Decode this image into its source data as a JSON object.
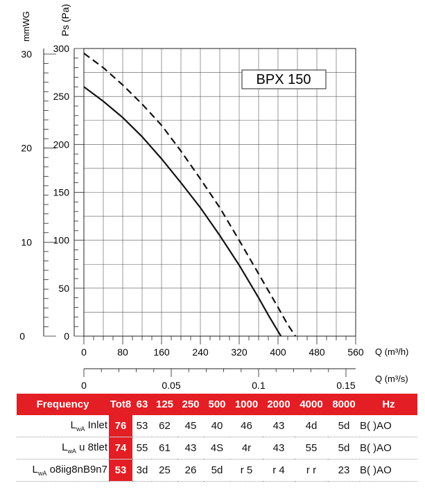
{
  "chart_data": {
    "type": "line",
    "title": "BPX 150",
    "xlabel": "Q (m³/h)",
    "ylabel": "Ps (Pa)",
    "y2label": "mmWG",
    "x2label": "Q (m³/s)",
    "xlim": [
      0,
      560
    ],
    "ylim": [
      0,
      300
    ],
    "x_ticks": [
      0,
      80,
      160,
      240,
      320,
      400,
      480,
      560
    ],
    "y_ticks": [
      0,
      50,
      100,
      150,
      200,
      250,
      300
    ],
    "y2_ticks": [
      0,
      10,
      20,
      30
    ],
    "x2_ticks": [
      "0",
      "0.05",
      "0.1",
      "0.15"
    ],
    "grid": true,
    "series": [
      {
        "style": "solid",
        "x": [
          0,
          40,
          80,
          120,
          160,
          200,
          240,
          280,
          320,
          360,
          380,
          400,
          406
        ],
        "y": [
          260,
          245,
          228,
          208,
          185,
          160,
          134,
          105,
          74,
          40,
          22,
          5,
          0
        ]
      },
      {
        "style": "dashed",
        "x": [
          0,
          40,
          80,
          120,
          160,
          200,
          240,
          280,
          320,
          360,
          400,
          420,
          436
        ],
        "y": [
          295,
          280,
          262,
          242,
          220,
          193,
          164,
          134,
          100,
          65,
          30,
          12,
          0
        ]
      }
    ]
  },
  "table": {
    "frequency_label": "Frequency",
    "columns": [
      "Tot8",
      "63",
      "125",
      "250",
      "500",
      "1000",
      "2000",
      "4000",
      "8000",
      "Hz"
    ],
    "rows": [
      {
        "lwa": "L",
        "lwa_sub": "wA",
        "label": "Inlet",
        "tot": "76",
        "values": [
          "53",
          "62",
          "45",
          "40",
          "46",
          "43",
          "4d",
          "5d"
        ],
        "unit": "B( )AO"
      },
      {
        "lwa": "L",
        "lwa_sub": "wA",
        "label": "u 8tlet",
        "tot": "74",
        "values": [
          "55",
          "61",
          "43",
          "4S",
          "4r",
          "43",
          "55",
          "5d"
        ],
        "unit": "B( )AO"
      },
      {
        "lwa": "L",
        "lwa_sub": "wA",
        "label": "o8iig8nB9n7",
        "tot": "53",
        "values": [
          "3d",
          "25",
          "26",
          "5d",
          "r 5",
          "r 4",
          "r r",
          "23"
        ],
        "unit": "B( )AO"
      }
    ]
  }
}
